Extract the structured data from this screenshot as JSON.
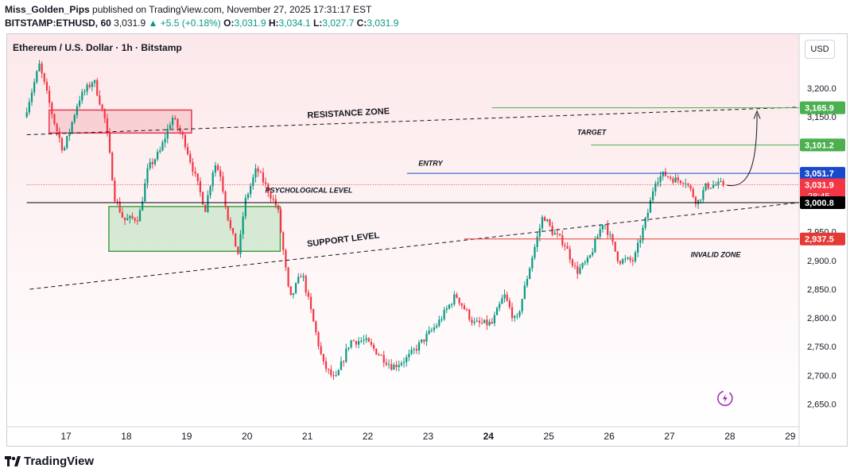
{
  "header": {
    "author": "Miss_Golden_Pips",
    "published_text": "published on TradingView.com, November 27, 2025 17:31:17 EST",
    "symbol": "BITSTAMP:ETHUSD, 60",
    "last": "3,031.9",
    "change": "▲ +5.5 (+0.18%)",
    "o_label": "O:",
    "o": "3,031.9",
    "h_label": "H:",
    "h": "3,034.1",
    "l_label": "L:",
    "l": "3,027.7",
    "c_label": "C:",
    "c": "3,031.9"
  },
  "instrument_label": "Ethereum / U.S. Dollar · 1h · Bitstamp",
  "currency_button": "USD",
  "brand": "TradingView",
  "colors": {
    "up": "#089981",
    "down": "#f23645",
    "background_tint": "#fce8ea",
    "entry": "#1848cc",
    "target": "#4caf50",
    "invalid": "#e53935",
    "resistance_box": "#f7c5cb",
    "support_box": "#c8e6c9"
  },
  "chart_data": {
    "type": "candlestick",
    "x_ticks": [
      "17",
      "18",
      "19",
      "20",
      "21",
      "22",
      "23",
      "24",
      "25",
      "26",
      "27",
      "28",
      "29"
    ],
    "y_ticks": [
      "3,200.0",
      "3,150.0",
      "3,100.0",
      "3,050.0",
      "3,000.0",
      "2,950.0",
      "2,900.0",
      "2,850.0",
      "2,800.0",
      "2,750.0",
      "2,700.0",
      "2,650.0"
    ],
    "y_tick_values": [
      3200,
      3150,
      3100,
      3050,
      3000,
      2950,
      2900,
      2850,
      2800,
      2750,
      2700,
      2650
    ],
    "ylim": [
      2615,
      3290
    ],
    "price_levels": [
      {
        "name": "target-high",
        "label": "3,165.9",
        "value": 3165.9,
        "color": "#4caf50"
      },
      {
        "name": "target",
        "label": "3,101.2",
        "value": 3101.2,
        "color": "#4caf50"
      },
      {
        "name": "entry",
        "label": "3,051.7",
        "value": 3051.7,
        "color": "#1848cc"
      },
      {
        "name": "last",
        "label": "3,031.9",
        "value": 3031.9,
        "color": "#f23645",
        "countdown": "28:45"
      },
      {
        "name": "psychological",
        "label": "3,000.8",
        "value": 3000.8,
        "color": "#000000"
      },
      {
        "name": "invalid",
        "label": "2,937.5",
        "value": 2937.5,
        "color": "#e53935"
      }
    ],
    "annotations": {
      "resistance": "RESISTANCE ZONE",
      "target": "TARGET",
      "entry": "ENTRY",
      "psychological": "PSYCHOLOGICAL LEVEL",
      "support": "SUPPORT LEVEL",
      "invalid": "INVALID ZONE"
    },
    "zones": [
      {
        "name": "resistance-box",
        "day_from": 16.72,
        "day_to": 19.08,
        "low": 3122,
        "high": 3162,
        "color": "#f7c5cb"
      },
      {
        "name": "support-box",
        "day_from": 17.71,
        "day_to": 20.55,
        "low": 2916,
        "high": 2994,
        "color": "#c8e6c9"
      }
    ],
    "trendlines": [
      {
        "name": "resistance-trendline",
        "from": [
          16.35,
          3119
        ],
        "to": [
          29.15,
          3167
        ]
      },
      {
        "name": "support-trendline",
        "from": [
          16.4,
          2850
        ],
        "to": [
          29.15,
          3001
        ]
      }
    ],
    "path_keypoints": [
      [
        16.35,
        3150
      ],
      [
        16.6,
        3240
      ],
      [
        16.85,
        3140
      ],
      [
        17.0,
        3090
      ],
      [
        17.25,
        3180
      ],
      [
        17.5,
        3215
      ],
      [
        17.7,
        3140
      ],
      [
        17.85,
        3010
      ],
      [
        18.0,
        2970
      ],
      [
        18.25,
        2975
      ],
      [
        18.4,
        3060
      ],
      [
        18.6,
        3090
      ],
      [
        18.8,
        3150
      ],
      [
        19.0,
        3110
      ],
      [
        19.2,
        3040
      ],
      [
        19.35,
        2990
      ],
      [
        19.5,
        3070
      ],
      [
        19.6,
        3050
      ],
      [
        19.75,
        2960
      ],
      [
        19.9,
        2910
      ],
      [
        20.0,
        3000
      ],
      [
        20.2,
        3060
      ],
      [
        20.4,
        3020
      ],
      [
        20.55,
        2990
      ],
      [
        20.75,
        2830
      ],
      [
        20.95,
        2880
      ],
      [
        21.3,
        2720
      ],
      [
        21.5,
        2690
      ],
      [
        21.75,
        2760
      ],
      [
        22.0,
        2760
      ],
      [
        22.2,
        2740
      ],
      [
        22.45,
        2715
      ],
      [
        22.7,
        2730
      ],
      [
        22.95,
        2760
      ],
      [
        23.2,
        2790
      ],
      [
        23.5,
        2840
      ],
      [
        23.8,
        2790
      ],
      [
        24.1,
        2790
      ],
      [
        24.3,
        2840
      ],
      [
        24.5,
        2790
      ],
      [
        24.75,
        2900
      ],
      [
        24.95,
        2980
      ],
      [
        25.1,
        2950
      ],
      [
        25.3,
        2930
      ],
      [
        25.5,
        2880
      ],
      [
        25.7,
        2900
      ],
      [
        25.95,
        2970
      ],
      [
        26.2,
        2900
      ],
      [
        26.45,
        2900
      ],
      [
        26.7,
        2990
      ],
      [
        26.8,
        3040
      ],
      [
        26.95,
        3050
      ],
      [
        27.15,
        3040
      ],
      [
        27.3,
        3040
      ],
      [
        27.5,
        3000
      ],
      [
        27.65,
        3030
      ],
      [
        27.9,
        3032
      ]
    ]
  }
}
